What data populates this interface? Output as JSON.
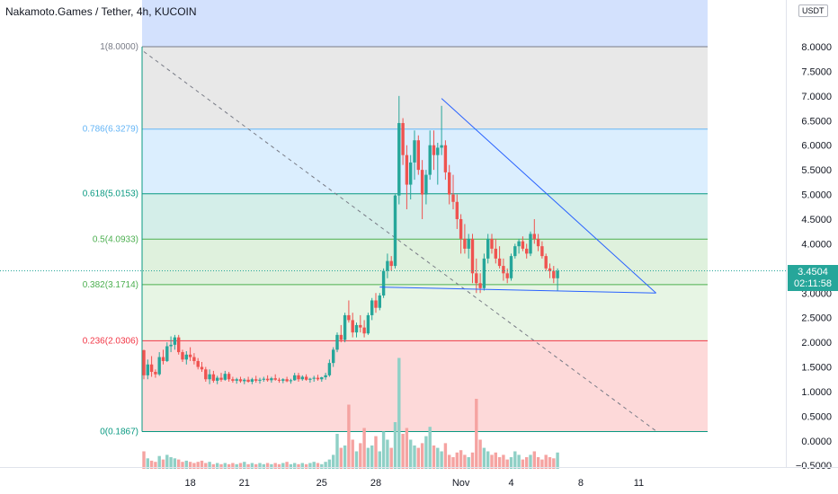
{
  "header": {
    "title": "Nakamoto.Games / Tether, 4h, KUCOIN"
  },
  "axis": {
    "currency": "USDT"
  },
  "last_price": {
    "value": "3.4504",
    "countdown": "02:11:58"
  },
  "chart_data": {
    "type": "candlestick",
    "symbol": "Nakamoto.Games / Tether",
    "interval": "4h",
    "exchange": "KUCOIN",
    "ylim": [
      -0.5,
      8.5
    ],
    "y_ticks": [
      8.0,
      7.5,
      7.0,
      6.5,
      6.0,
      5.5,
      5.0,
      4.5,
      4.0,
      3.5,
      3.0,
      2.5,
      2.0,
      1.5,
      1.0,
      0.5,
      0.0,
      -0.5
    ],
    "y_tick_labels": [
      "8.0000",
      "7.5000",
      "7.0000",
      "6.5000",
      "6.0000",
      "5.5000",
      "5.0000",
      "4.5000",
      "4.0000",
      "3.5000",
      "3.0000",
      "2.5000",
      "2.0000",
      "1.5000",
      "1.0000",
      "0.5000",
      "0.0000",
      "−0.5000"
    ],
    "x_ticks": [
      "18",
      "21",
      "25",
      "28",
      "Nov",
      "4",
      "8",
      "11"
    ],
    "x_tick_bar_index": [
      12,
      26,
      46,
      60,
      82,
      95,
      113,
      128
    ],
    "fibonacci": [
      {
        "label": "1(8.0000)",
        "level": 8.0,
        "color": "#787b86",
        "fill": "#f0f0f0"
      },
      {
        "label": "0.786(6.3279)",
        "level": 6.3279,
        "color": "#64b5f6",
        "fill": "#e8e8e8"
      },
      {
        "label": "0.618(5.0153)",
        "level": 5.0153,
        "color": "#089981",
        "fill": "#dbeefe"
      },
      {
        "label": "0.5(4.0933)",
        "level": 4.0933,
        "color": "#4caf50",
        "fill": "#d4eee9"
      },
      {
        "label": "0.382(3.1714)",
        "level": 3.1714,
        "color": "#4caf50",
        "fill": "#dff1dd"
      },
      {
        "label": "0.236(2.0306)",
        "level": 2.0306,
        "color": "#f23645",
        "fill": "#e7f5e4"
      },
      {
        "label": "0(0.1867)",
        "level": 0.1867,
        "color": "#089981",
        "fill": "#fdd9d9"
      }
    ],
    "top_zone_fill": "#d3e1fd",
    "colors": {
      "up": "#26a69a",
      "down": "#ef5350",
      "vol_up": "#8fd0c6",
      "vol_down": "#f5a3a1",
      "trendline": "#2962ff"
    },
    "candles": [
      [
        1.84,
        1.85,
        1.25,
        1.33
      ],
      [
        1.33,
        1.65,
        1.25,
        1.55
      ],
      [
        1.55,
        1.72,
        1.3,
        1.4
      ],
      [
        1.4,
        1.45,
        1.28,
        1.35
      ],
      [
        1.35,
        1.8,
        1.32,
        1.7
      ],
      [
        1.7,
        1.85,
        1.55,
        1.62
      ],
      [
        1.62,
        2.0,
        1.6,
        1.92
      ],
      [
        1.92,
        2.12,
        1.8,
        1.95
      ],
      [
        1.95,
        2.15,
        1.85,
        2.1
      ],
      [
        2.1,
        2.15,
        1.75,
        1.8
      ],
      [
        1.8,
        1.85,
        1.6,
        1.65
      ],
      [
        1.65,
        1.82,
        1.55,
        1.75
      ],
      [
        1.75,
        1.9,
        1.62,
        1.7
      ],
      [
        1.7,
        1.78,
        1.55,
        1.62
      ],
      [
        1.62,
        1.68,
        1.45,
        1.5
      ],
      [
        1.5,
        1.6,
        1.4,
        1.45
      ],
      [
        1.45,
        1.5,
        1.2,
        1.25
      ],
      [
        1.25,
        1.45,
        1.15,
        1.35
      ],
      [
        1.35,
        1.42,
        1.18,
        1.22
      ],
      [
        1.22,
        1.32,
        1.15,
        1.28
      ],
      [
        1.28,
        1.38,
        1.2,
        1.24
      ],
      [
        1.24,
        1.42,
        1.22,
        1.36
      ],
      [
        1.36,
        1.4,
        1.2,
        1.25
      ],
      [
        1.25,
        1.3,
        1.18,
        1.22
      ],
      [
        1.22,
        1.28,
        1.16,
        1.25
      ],
      [
        1.25,
        1.3,
        1.18,
        1.21
      ],
      [
        1.21,
        1.27,
        1.15,
        1.24
      ],
      [
        1.24,
        1.3,
        1.18,
        1.2
      ],
      [
        1.2,
        1.28,
        1.15,
        1.25
      ],
      [
        1.25,
        1.32,
        1.18,
        1.22
      ],
      [
        1.22,
        1.28,
        1.16,
        1.24
      ],
      [
        1.24,
        1.3,
        1.2,
        1.26
      ],
      [
        1.26,
        1.33,
        1.2,
        1.23
      ],
      [
        1.23,
        1.3,
        1.18,
        1.27
      ],
      [
        1.27,
        1.35,
        1.22,
        1.24
      ],
      [
        1.24,
        1.28,
        1.18,
        1.22
      ],
      [
        1.22,
        1.27,
        1.17,
        1.25
      ],
      [
        1.25,
        1.3,
        1.19,
        1.21
      ],
      [
        1.21,
        1.26,
        1.16,
        1.23
      ],
      [
        1.23,
        1.38,
        1.22,
        1.33
      ],
      [
        1.33,
        1.38,
        1.2,
        1.25
      ],
      [
        1.25,
        1.33,
        1.22,
        1.3
      ],
      [
        1.3,
        1.35,
        1.22,
        1.24
      ],
      [
        1.24,
        1.28,
        1.18,
        1.26
      ],
      [
        1.26,
        1.32,
        1.2,
        1.28
      ],
      [
        1.28,
        1.34,
        1.22,
        1.25
      ],
      [
        1.25,
        1.3,
        1.2,
        1.29
      ],
      [
        1.29,
        1.38,
        1.24,
        1.33
      ],
      [
        1.33,
        1.65,
        1.3,
        1.58
      ],
      [
        1.58,
        1.9,
        1.5,
        1.85
      ],
      [
        1.85,
        2.2,
        1.8,
        2.15
      ],
      [
        2.15,
        2.35,
        2.0,
        2.05
      ],
      [
        2.05,
        2.6,
        2.0,
        2.55
      ],
      [
        2.55,
        2.85,
        2.4,
        2.45
      ],
      [
        2.45,
        2.6,
        2.1,
        2.2
      ],
      [
        2.2,
        2.4,
        2.1,
        2.35
      ],
      [
        2.35,
        2.55,
        2.2,
        2.3
      ],
      [
        2.3,
        2.45,
        2.1,
        2.18
      ],
      [
        2.18,
        2.6,
        2.15,
        2.55
      ],
      [
        2.55,
        2.9,
        2.45,
        2.85
      ],
      [
        2.85,
        3.0,
        2.6,
        2.7
      ],
      [
        2.7,
        3.0,
        2.65,
        2.95
      ],
      [
        2.95,
        3.5,
        2.9,
        3.45
      ],
      [
        3.45,
        3.8,
        3.3,
        3.65
      ],
      [
        3.65,
        3.75,
        3.45,
        3.55
      ],
      [
        3.55,
        5.0,
        3.5,
        4.98
      ],
      [
        4.98,
        7.0,
        4.8,
        6.45
      ],
      [
        6.45,
        6.55,
        5.6,
        5.8
      ],
      [
        5.8,
        6.0,
        4.7,
        5.2
      ],
      [
        5.2,
        5.8,
        4.9,
        5.65
      ],
      [
        5.65,
        6.3,
        5.3,
        6.1
      ],
      [
        6.1,
        6.2,
        5.4,
        5.5
      ],
      [
        5.5,
        5.7,
        4.5,
        5.0
      ],
      [
        5.0,
        5.5,
        4.8,
        5.4
      ],
      [
        5.4,
        6.3,
        5.3,
        6.0
      ],
      [
        6.0,
        6.3,
        5.5,
        5.8
      ],
      [
        5.8,
        6.05,
        5.2,
        5.95
      ],
      [
        5.95,
        6.8,
        5.8,
        6.0
      ],
      [
        6.0,
        6.1,
        5.3,
        5.45
      ],
      [
        5.45,
        5.6,
        4.8,
        5.0
      ],
      [
        5.0,
        5.4,
        4.7,
        4.85
      ],
      [
        4.85,
        5.0,
        4.3,
        4.5
      ],
      [
        4.5,
        4.6,
        3.8,
        4.1
      ],
      [
        4.1,
        4.4,
        3.8,
        3.9
      ],
      [
        3.9,
        4.2,
        3.7,
        4.1
      ],
      [
        4.1,
        4.2,
        3.2,
        3.4
      ],
      [
        3.4,
        3.7,
        3.0,
        3.2
      ],
      [
        3.2,
        3.4,
        3.0,
        3.1
      ],
      [
        3.1,
        3.8,
        3.05,
        3.7
      ],
      [
        3.7,
        4.2,
        3.6,
        4.1
      ],
      [
        4.1,
        4.2,
        3.8,
        3.9
      ],
      [
        3.9,
        4.1,
        3.6,
        3.7
      ],
      [
        3.7,
        3.95,
        3.5,
        3.55
      ],
      [
        3.55,
        3.7,
        3.25,
        3.4
      ],
      [
        3.4,
        3.5,
        3.2,
        3.3
      ],
      [
        3.3,
        3.8,
        3.25,
        3.75
      ],
      [
        3.75,
        4.0,
        3.7,
        3.95
      ],
      [
        3.95,
        4.1,
        3.8,
        4.05
      ],
      [
        4.05,
        4.15,
        3.85,
        3.9
      ],
      [
        3.9,
        4.0,
        3.7,
        3.8
      ],
      [
        3.8,
        4.25,
        3.75,
        4.2
      ],
      [
        4.2,
        4.5,
        4.0,
        4.1
      ],
      [
        4.1,
        4.2,
        3.85,
        3.95
      ],
      [
        3.95,
        4.05,
        3.7,
        3.75
      ],
      [
        3.75,
        3.8,
        3.45,
        3.5
      ],
      [
        3.5,
        3.6,
        3.3,
        3.45
      ],
      [
        3.45,
        3.55,
        3.2,
        3.3
      ],
      [
        3.3,
        3.5,
        3.05,
        3.45
      ]
    ],
    "volume": [
      0.15,
      0.09,
      0.07,
      0.06,
      0.11,
      0.08,
      0.12,
      0.1,
      0.09,
      0.08,
      0.06,
      0.07,
      0.06,
      0.05,
      0.06,
      0.07,
      0.05,
      0.06,
      0.04,
      0.05,
      0.04,
      0.05,
      0.04,
      0.05,
      0.04,
      0.05,
      0.06,
      0.04,
      0.05,
      0.04,
      0.05,
      0.04,
      0.05,
      0.04,
      0.05,
      0.04,
      0.05,
      0.06,
      0.04,
      0.05,
      0.04,
      0.05,
      0.04,
      0.05,
      0.06,
      0.05,
      0.04,
      0.06,
      0.08,
      0.12,
      0.3,
      0.18,
      0.2,
      0.55,
      0.25,
      0.15,
      0.22,
      0.35,
      0.18,
      0.2,
      0.28,
      0.15,
      0.32,
      0.25,
      0.18,
      0.4,
      0.95,
      0.3,
      0.35,
      0.25,
      0.2,
      0.18,
      0.22,
      0.28,
      0.36,
      0.2,
      0.18,
      0.15,
      0.22,
      0.12,
      0.1,
      0.14,
      0.16,
      0.12,
      0.1,
      0.14,
      0.6,
      0.25,
      0.18,
      0.15,
      0.12,
      0.14,
      0.1,
      0.12,
      0.08,
      0.1,
      0.15,
      0.12,
      0.08,
      0.1,
      0.12,
      0.15,
      0.1,
      0.08,
      0.12,
      0.1,
      0.09,
      0.14
    ],
    "annotations": [
      {
        "type": "descending_trendline",
        "from_bar": 77,
        "from_price": 6.95,
        "to_bar": 132,
        "to_price": 3.0
      },
      {
        "type": "support_line",
        "from_bar": 61,
        "from_price": 3.12,
        "to_bar": 132,
        "to_price": 3.0
      },
      {
        "type": "dashed_diagonal",
        "from_bar": 0,
        "from_price": 7.9,
        "to_bar": 132,
        "to_price": 0.2
      }
    ]
  }
}
